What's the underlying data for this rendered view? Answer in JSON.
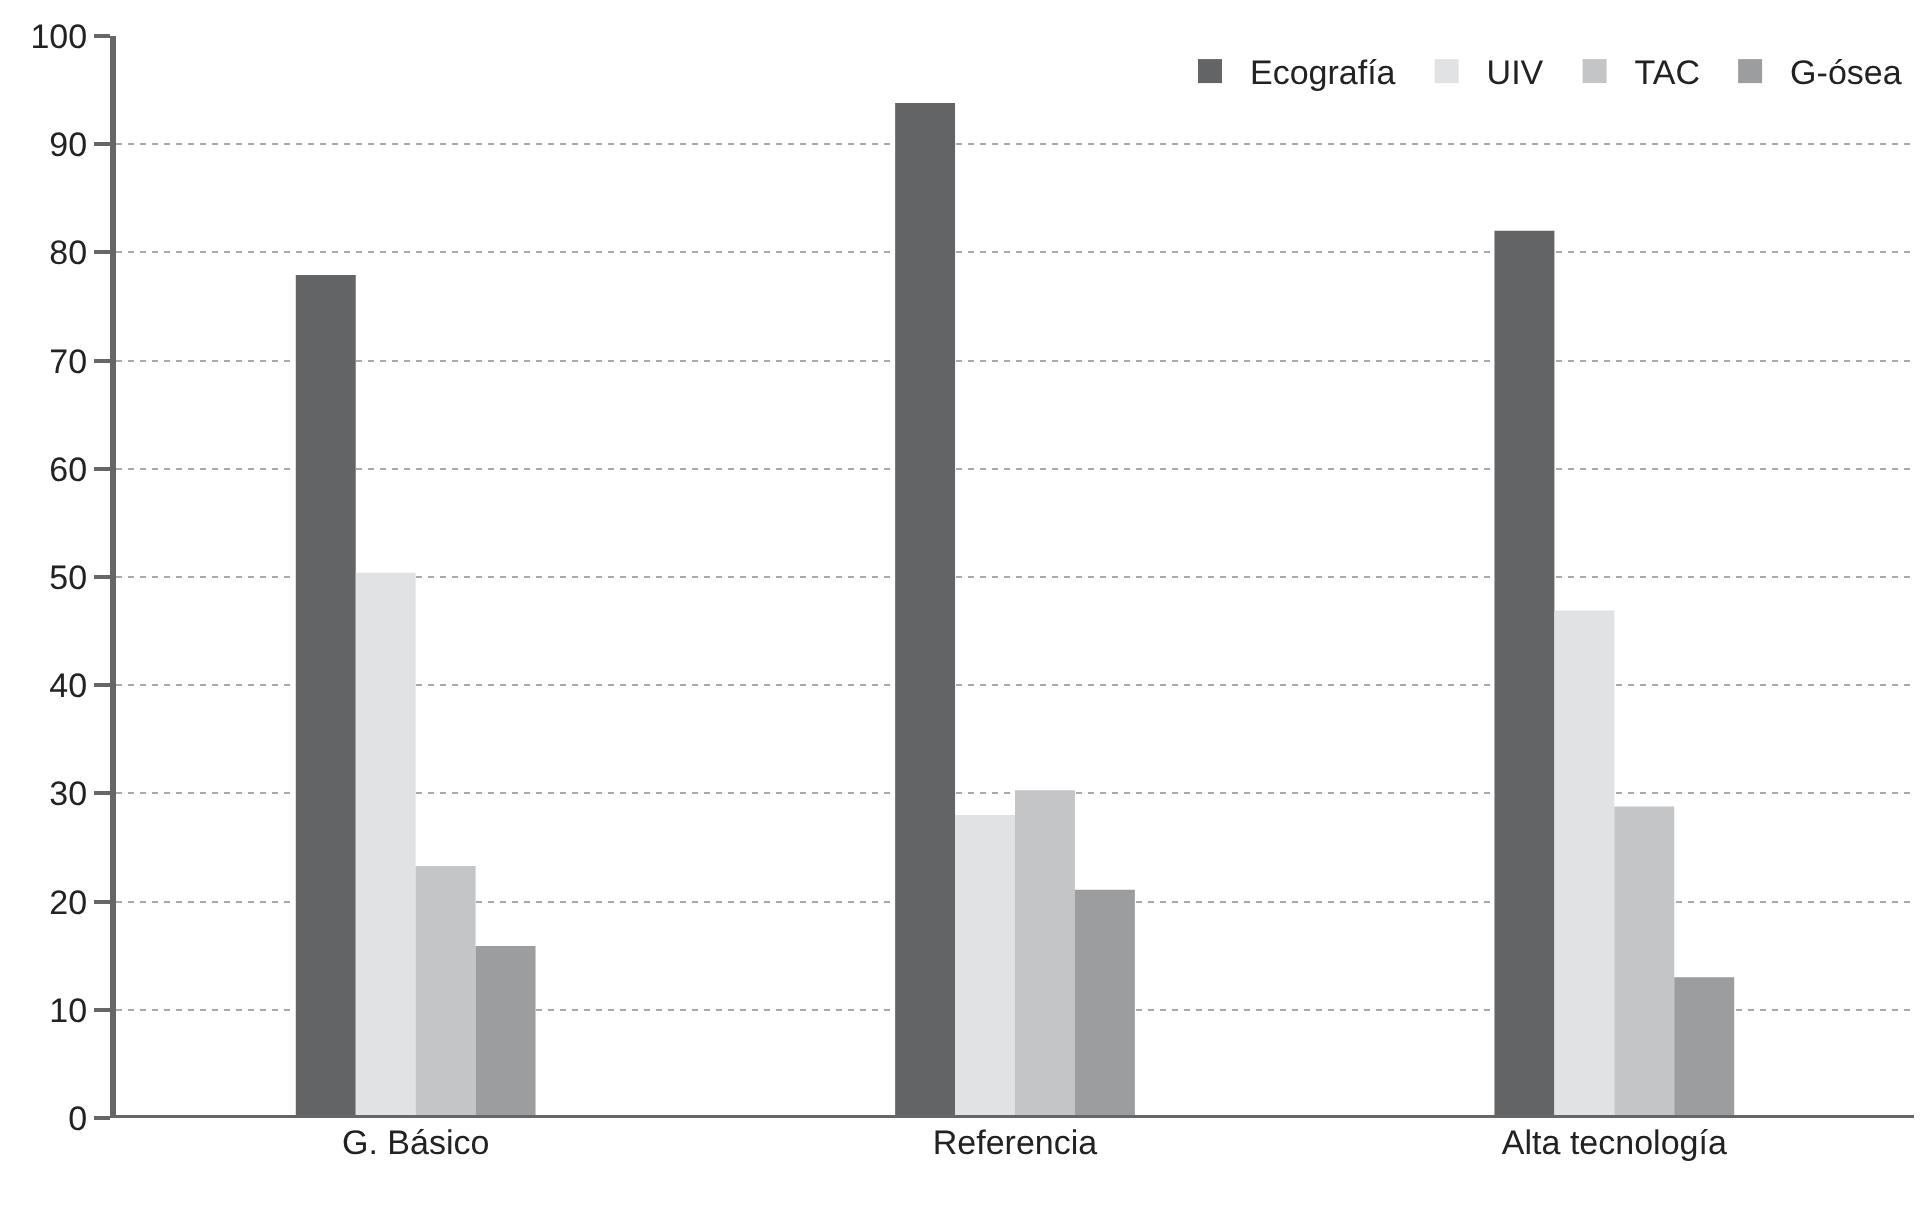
{
  "chart_data": {
    "type": "bar",
    "categories": [
      "G. Básico",
      "Referencia",
      "Alta tecnología"
    ],
    "series": [
      {
        "name": "Ecografía",
        "color": "#636466",
        "values": [
          77.9,
          93.8,
          82.0
        ]
      },
      {
        "name": "UIV",
        "color": "#e1e2e4",
        "values": [
          50.4,
          28.0,
          46.9
        ]
      },
      {
        "name": "TAC",
        "color": "#c4c5c7",
        "values": [
          23.3,
          30.3,
          28.8
        ]
      },
      {
        "name": "G-ósea",
        "color": "#9c9d9f",
        "values": [
          15.9,
          21.1,
          13.0
        ]
      }
    ],
    "ylim": [
      0,
      100
    ],
    "yticks": [
      0,
      10,
      20,
      30,
      40,
      50,
      60,
      70,
      80,
      90,
      100
    ],
    "grid": "y",
    "legend": "top right"
  }
}
